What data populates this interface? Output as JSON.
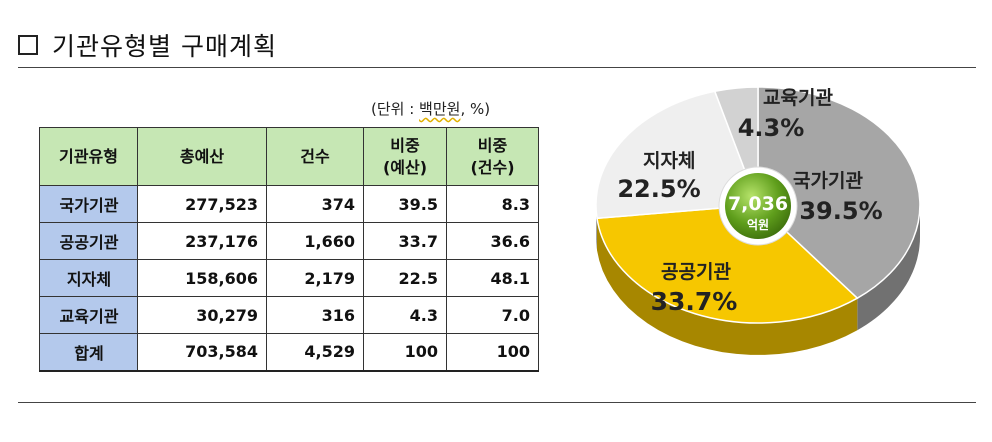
{
  "title": "기관유형별 구매계획",
  "unit_prefix": "(단위 : ",
  "unit_main": "백만원",
  "unit_suffix": ", %)",
  "table": {
    "headers": [
      "기관유형",
      "총예산",
      "건수",
      "비중\n(예산)",
      "비중\n(건수)"
    ],
    "rows": [
      [
        "국가기관",
        "277,523",
        "374",
        "39.5",
        "8.3"
      ],
      [
        "공공기관",
        "237,176",
        "1,660",
        "33.7",
        "36.6"
      ],
      [
        "지자체",
        "158,606",
        "2,179",
        "22.5",
        "48.1"
      ],
      [
        "교육기관",
        "30,279",
        "316",
        "4.3",
        "7.0"
      ],
      [
        "합계",
        "703,584",
        "4,529",
        "100",
        "100"
      ]
    ]
  },
  "chart_data": {
    "type": "pie",
    "title": "",
    "center_value": "7,036",
    "center_unit": "억원",
    "slices": [
      {
        "label": "국가기관",
        "value": 39.5,
        "pct": "39.5%",
        "color": "#a6a6a6"
      },
      {
        "label": "공공기관",
        "value": 33.7,
        "pct": "33.7%",
        "color": "#f6c700"
      },
      {
        "label": "지자체",
        "value": 22.5,
        "pct": "22.5%",
        "color": "#efefef"
      },
      {
        "label": "교육기관",
        "value": 4.3,
        "pct": "4.3%",
        "color": "#d2d2d2"
      }
    ]
  }
}
